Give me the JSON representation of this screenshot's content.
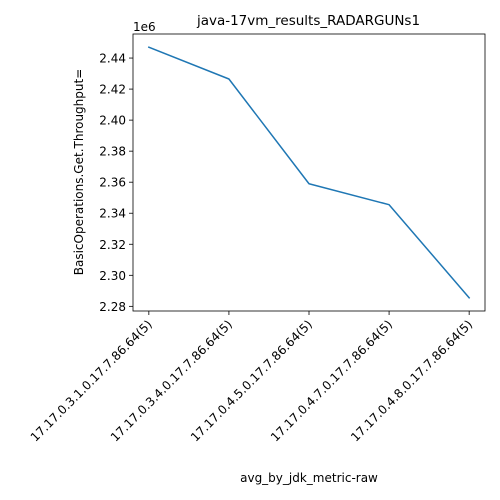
{
  "chart_data": {
    "type": "line",
    "title": "java-17vm_results_RADARGUNs1",
    "xlabel": "avg_by_jdk_metric-raw",
    "ylabel": "BasicOperations.Get.Throughput=",
    "y_offset_label": "1e6",
    "categories": [
      "17.17.0.3.1.0.17.7.86.64(5)",
      "17.17.0.3.4.0.17.7.86.64(5)",
      "17.17.0.4.5.0.17.7.86.64(5)",
      "17.17.0.4.7.0.17.7.86.64(5)",
      "17.17.0.4.8.0.17.7.86.64(5)"
    ],
    "series": [
      {
        "values": [
          2447000,
          2426500,
          2359000,
          2345500,
          2285500
        ],
        "color": "#1f77b4"
      }
    ],
    "y_ticks": [
      2.28,
      2.3,
      2.32,
      2.34,
      2.36,
      2.38,
      2.4,
      2.42,
      2.44
    ],
    "y_tick_labels": [
      "2.28",
      "2.30",
      "2.32",
      "2.34",
      "2.36",
      "2.38",
      "2.40",
      "2.42",
      "2.44"
    ],
    "ylim": [
      2277000,
      2455500
    ],
    "grid": false,
    "legend": "none"
  }
}
